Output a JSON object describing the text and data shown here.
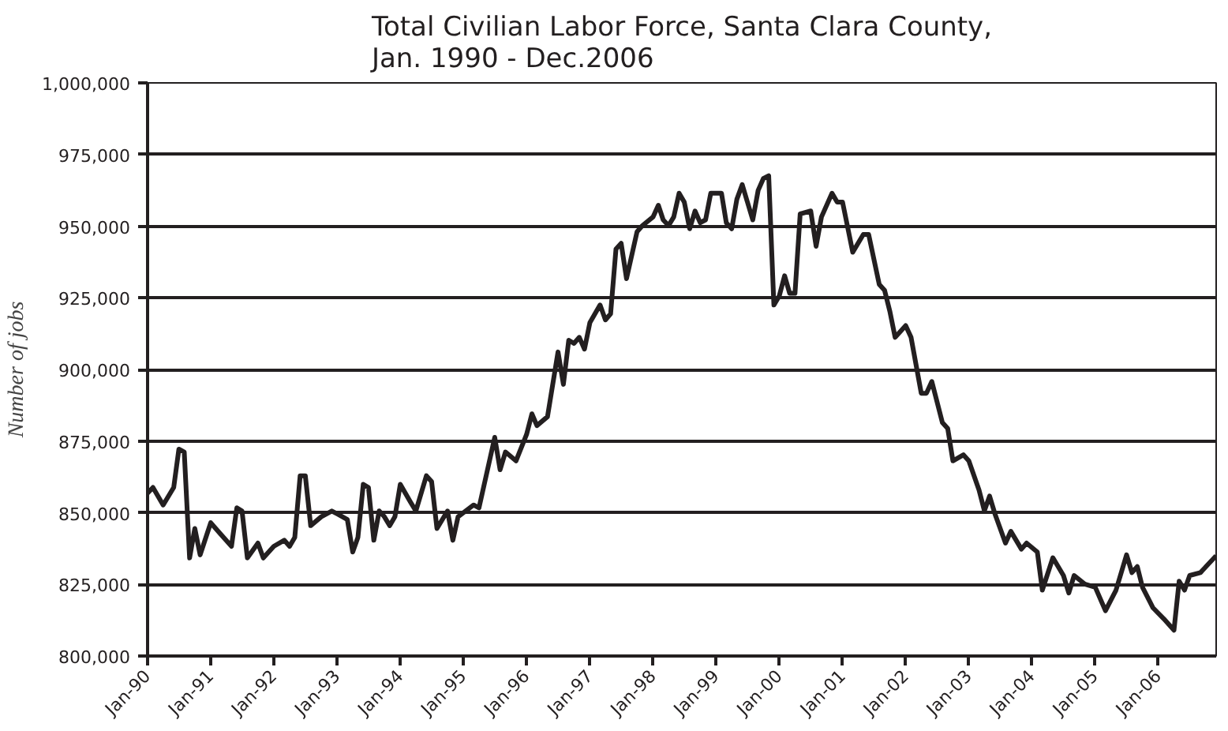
{
  "chart_data": {
    "type": "line",
    "title": "Total Civilian Labor Force, Santa Clara County,\nJan. 1990 - Dec.2006",
    "ylabel": "Number of jobs",
    "x": [
      "1990-01",
      "1990-02",
      "1990-04",
      "1990-06",
      "1990-07",
      "1990-08",
      "1990-09",
      "1990-10",
      "1990-11",
      "1991-01",
      "1991-03",
      "1991-05",
      "1991-06",
      "1991-07",
      "1991-08",
      "1991-10",
      "1991-11",
      "1992-01",
      "1992-03",
      "1992-04",
      "1992-05",
      "1992-06",
      "1992-07",
      "1992-08",
      "1992-10",
      "1992-12",
      "1993-01",
      "1993-03",
      "1993-04",
      "1993-05",
      "1993-06",
      "1993-07",
      "1993-08",
      "1993-09",
      "1993-10",
      "1993-11",
      "1993-12",
      "1994-01",
      "1994-03",
      "1994-04",
      "1994-06",
      "1994-07",
      "1994-08",
      "1994-10",
      "1994-11",
      "1994-12",
      "1995-03",
      "1995-04",
      "1995-07",
      "1995-08",
      "1995-09",
      "1995-11",
      "1996-01",
      "1996-02",
      "1996-03",
      "1996-05",
      "1996-07",
      "1996-08",
      "1996-09",
      "1996-10",
      "1996-11",
      "1996-12",
      "1997-01",
      "1997-03",
      "1997-04",
      "1997-05",
      "1997-06",
      "1997-07",
      "1997-08",
      "1997-10",
      "1997-11",
      "1998-01",
      "1998-02",
      "1998-03",
      "1998-04",
      "1998-05",
      "1998-06",
      "1998-07",
      "1998-08",
      "1998-09",
      "1998-10",
      "1998-11",
      "1998-12",
      "1999-02",
      "1999-03",
      "1999-04",
      "1999-05",
      "1999-06",
      "1999-07",
      "1999-08",
      "1999-09",
      "1999-10",
      "1999-11",
      "1999-12",
      "2000-01",
      "2000-02",
      "2000-03",
      "2000-04",
      "2000-05",
      "2000-07",
      "2000-08",
      "2000-09",
      "2000-11",
      "2000-12",
      "2001-01",
      "2001-03",
      "2001-05",
      "2001-06",
      "2001-08",
      "2001-09",
      "2001-10",
      "2001-11",
      "2002-01",
      "2002-02",
      "2002-04",
      "2002-05",
      "2002-06",
      "2002-08",
      "2002-09",
      "2002-10",
      "2002-12",
      "2003-01",
      "2003-03",
      "2003-04",
      "2003-05",
      "2003-06",
      "2003-08",
      "2003-09",
      "2003-11",
      "2003-12",
      "2004-02",
      "2004-03",
      "2004-05",
      "2004-07",
      "2004-08",
      "2004-09",
      "2004-11",
      "2005-01",
      "2005-03",
      "2005-05",
      "2005-07",
      "2005-08",
      "2005-09",
      "2005-10",
      "2005-12",
      "2006-02",
      "2006-04",
      "2006-05",
      "2006-06",
      "2006-07",
      "2006-09",
      "2006-12"
    ],
    "series": [
      {
        "color": "#231f20",
        "values": [
          856800,
          858800,
          852700,
          858800,
          872200,
          871200,
          834200,
          844500,
          835300,
          846500,
          842400,
          838300,
          851700,
          850600,
          834200,
          839400,
          834200,
          838300,
          840400,
          838300,
          841400,
          862900,
          862900,
          845500,
          848600,
          850600,
          849600,
          847600,
          836300,
          841400,
          859900,
          858800,
          840400,
          850600,
          848600,
          845500,
          848600,
          859900,
          853700,
          850600,
          862900,
          860900,
          844500,
          850600,
          840400,
          848600,
          852700,
          851700,
          876300,
          865000,
          871200,
          868100,
          877300,
          884500,
          880400,
          883500,
          906100,
          894800,
          910200,
          909100,
          911200,
          907100,
          916300,
          922500,
          917300,
          919400,
          942000,
          944000,
          931700,
          948100,
          950200,
          953200,
          957300,
          952200,
          950200,
          953200,
          961500,
          958400,
          949100,
          955300,
          951200,
          952200,
          961500,
          961500,
          951200,
          949100,
          959400,
          964500,
          958400,
          952200,
          962500,
          966600,
          967600,
          922500,
          925600,
          932700,
          926600,
          926600,
          954300,
          955300,
          943000,
          953200,
          961500,
          958400,
          958400,
          940900,
          947100,
          947100,
          929700,
          927600,
          920400,
          911200,
          915300,
          911200,
          891700,
          891700,
          895800,
          881500,
          879400,
          868100,
          870200,
          868100,
          857900,
          850700,
          855800,
          849600,
          839400,
          843500,
          837300,
          839400,
          836300,
          823000,
          834300,
          828100,
          822000,
          828100,
          825100,
          824000,
          815800,
          823000,
          835300,
          829100,
          831200,
          824000,
          816800,
          813000,
          809000,
          826100,
          823000,
          828100,
          829100,
          835000
        ]
      }
    ],
    "xlim": [
      "1990-01",
      "2006-12"
    ],
    "xticks": [
      {
        "value": "1990-01",
        "label": "Jan-90"
      },
      {
        "value": "1991-01",
        "label": "Jan-91"
      },
      {
        "value": "1992-01",
        "label": "Jan-92"
      },
      {
        "value": "1993-01",
        "label": "Jan-93"
      },
      {
        "value": "1994-01",
        "label": "Jan-94"
      },
      {
        "value": "1995-01",
        "label": "Jan-95"
      },
      {
        "value": "1996-01",
        "label": "Jan-96"
      },
      {
        "value": "1997-01",
        "label": "Jan-97"
      },
      {
        "value": "1998-01",
        "label": "Jan-98"
      },
      {
        "value": "1999-01",
        "label": "Jan-99"
      },
      {
        "value": "2000-01",
        "label": "Jan-00"
      },
      {
        "value": "2001-01",
        "label": "Jan-01"
      },
      {
        "value": "2002-01",
        "label": "Jan-02"
      },
      {
        "value": "2003-01",
        "label": "Jan-03"
      },
      {
        "value": "2004-01",
        "label": "Jan-04"
      },
      {
        "value": "2005-01",
        "label": "Jan-05"
      },
      {
        "value": "2006-01",
        "label": "Jan-06"
      }
    ],
    "ylim": [
      800000,
      1000000
    ],
    "yticks": [
      {
        "value": 800000,
        "label": "800,000"
      },
      {
        "value": 825000,
        "label": "825,000"
      },
      {
        "value": 850000,
        "label": "850,000"
      },
      {
        "value": 875000,
        "label": "875,000"
      },
      {
        "value": 900000,
        "label": "900,000"
      },
      {
        "value": 925000,
        "label": "925,000"
      },
      {
        "value": 950000,
        "label": "950,000"
      },
      {
        "value": 975000,
        "label": "975,000"
      },
      {
        "value": 1000000,
        "label": "1,000,000"
      }
    ],
    "grid": "y",
    "marker": "none",
    "line_style": "solid"
  }
}
